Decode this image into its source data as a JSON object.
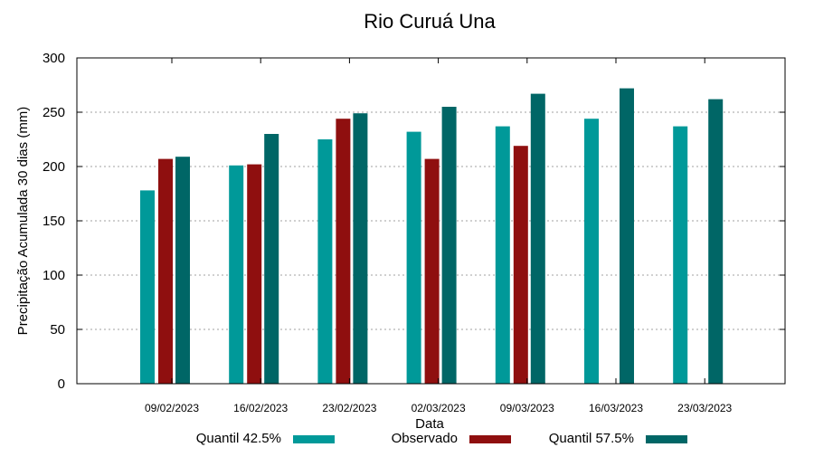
{
  "chart_data": {
    "type": "bar",
    "title": "Rio Curuá Una",
    "xlabel": "Data",
    "ylabel": "Precipitação Acumulada 30 dias (mm)",
    "ylim": [
      0,
      300
    ],
    "yticks": [
      0,
      50,
      100,
      150,
      200,
      250,
      300
    ],
    "grid": true,
    "legend_placement": "bottom",
    "categories": [
      "09/02/2023",
      "16/02/2023",
      "23/02/2023",
      "02/03/2023",
      "09/03/2023",
      "16/03/2023",
      "23/03/2023"
    ],
    "series": [
      {
        "name": "Quantil 42.5%",
        "color": "#009999",
        "values": [
          178,
          201,
          225,
          232,
          237,
          244,
          237
        ]
      },
      {
        "name": "Observado",
        "color": "#8f0f0f",
        "values": [
          207,
          202,
          244,
          207,
          219,
          null,
          null
        ]
      },
      {
        "name": "Quantil 57.5%",
        "color": "#006666",
        "values": [
          209,
          230,
          249,
          255,
          267,
          272,
          262
        ]
      }
    ]
  }
}
